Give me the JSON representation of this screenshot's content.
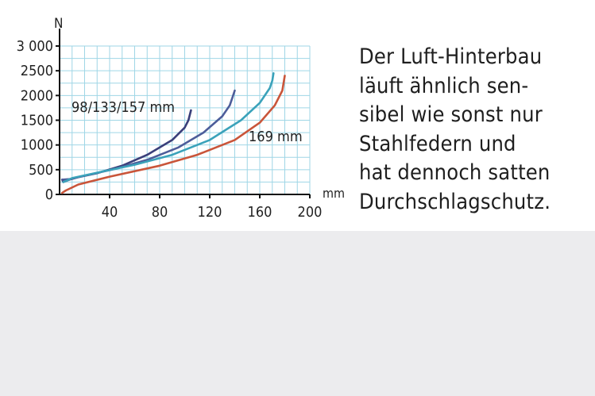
{
  "chart_data": {
    "type": "line",
    "ylabel": "N",
    "xlabel": "mm",
    "xlim": [
      0,
      200
    ],
    "ylim": [
      0,
      3000
    ],
    "x_ticks": [
      {
        "value": 40,
        "label": "40"
      },
      {
        "value": 80,
        "label": "80"
      },
      {
        "value": 120,
        "label": "120"
      },
      {
        "value": 160,
        "label": "160"
      },
      {
        "value": 200,
        "label": "200"
      }
    ],
    "y_ticks": [
      {
        "value": 0,
        "label": "0"
      },
      {
        "value": 500,
        "label": "500"
      },
      {
        "value": 1000,
        "label": "1000"
      },
      {
        "value": 1500,
        "label": "1500"
      },
      {
        "value": 2000,
        "label": "2000"
      },
      {
        "value": 2500,
        "label": "2500"
      },
      {
        "value": 3000,
        "label": "3 000"
      }
    ],
    "grid": true,
    "annotations": [
      {
        "text": "98/133/157  mm"
      },
      {
        "text": "169  mm"
      }
    ],
    "series": [
      {
        "color": "#3a3f7a",
        "x": [
          2,
          3,
          8,
          15,
          30,
          50,
          70,
          90,
          100,
          103,
          105
        ],
        "y": [
          300,
          250,
          300,
          350,
          430,
          580,
          800,
          1100,
          1350,
          1500,
          1700
        ]
      },
      {
        "color": "#4d5d9a",
        "x": [
          2,
          3,
          8,
          20,
          45,
          70,
          95,
          115,
          130,
          136,
          138,
          140
        ],
        "y": [
          300,
          300,
          310,
          380,
          520,
          700,
          950,
          1250,
          1580,
          1800,
          1950,
          2100
        ]
      },
      {
        "color": "#3aa2ba",
        "x": [
          3,
          10,
          30,
          60,
          90,
          120,
          145,
          160,
          168,
          170,
          171
        ],
        "y": [
          250,
          330,
          440,
          600,
          800,
          1100,
          1500,
          1850,
          2150,
          2300,
          2450
        ]
      },
      {
        "color": "#c9553a",
        "x": [
          2,
          5,
          15,
          40,
          80,
          110,
          140,
          160,
          172,
          178,
          180
        ],
        "y": [
          30,
          80,
          200,
          360,
          580,
          800,
          1100,
          1450,
          1800,
          2100,
          2400
        ]
      }
    ]
  },
  "caption": {
    "lines": [
      "Der Luft-Hinterbau",
      "läuft ähnlich sen-",
      "sibel wie sonst nur",
      "Stahlfedern und",
      "hat dennoch satten",
      "Durchschlagschutz."
    ]
  }
}
